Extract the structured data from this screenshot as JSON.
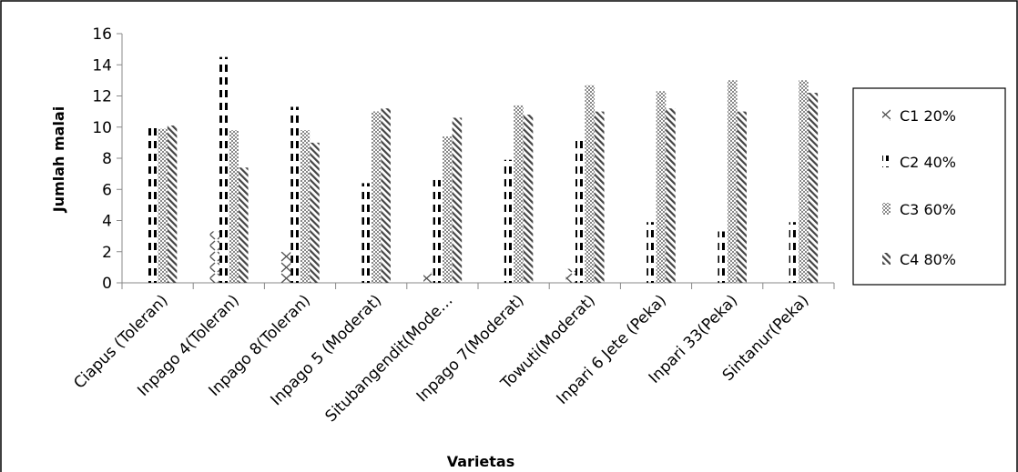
{
  "chart_data": {
    "type": "bar",
    "title": "",
    "xlabel": "Varietas",
    "ylabel": "Jumlah malai",
    "ylim": [
      0,
      16
    ],
    "yticks": [
      0,
      2,
      4,
      6,
      8,
      10,
      12,
      14,
      16
    ],
    "grid": false,
    "legend_position": "right",
    "categories": [
      "Ciapus (Toleran)",
      "Inpago 4(Toleran)",
      "Inpago 8(Toleran)",
      "Inpago 5 (Moderat)",
      "Situbangendit(Mode…",
      "Inpago 7(Moderat)",
      "Towuti(Moderat)",
      "Inpari 6 Jete (Peka)",
      "Inpari 33(Peka)",
      "Sintanur(Peka)"
    ],
    "series": [
      {
        "name": "C1 20%",
        "pattern": "zigzag",
        "values": [
          0,
          3.3,
          2.0,
          0,
          0.7,
          0,
          0.9,
          0,
          0,
          0
        ]
      },
      {
        "name": "C2 40%",
        "pattern": "dashed",
        "values": [
          10.2,
          14.5,
          11.3,
          6.4,
          6.6,
          7.9,
          9.4,
          3.9,
          3.3,
          3.9
        ]
      },
      {
        "name": "C3 60%",
        "pattern": "dotted",
        "values": [
          9.9,
          9.8,
          9.8,
          11.0,
          9.4,
          11.4,
          12.7,
          12.3,
          13.0,
          13.0
        ]
      },
      {
        "name": "C4 80%",
        "pattern": "diagonal",
        "values": [
          10.1,
          7.4,
          9.0,
          11.2,
          10.6,
          10.8,
          11.0,
          11.2,
          11.0,
          12.2
        ]
      }
    ]
  }
}
